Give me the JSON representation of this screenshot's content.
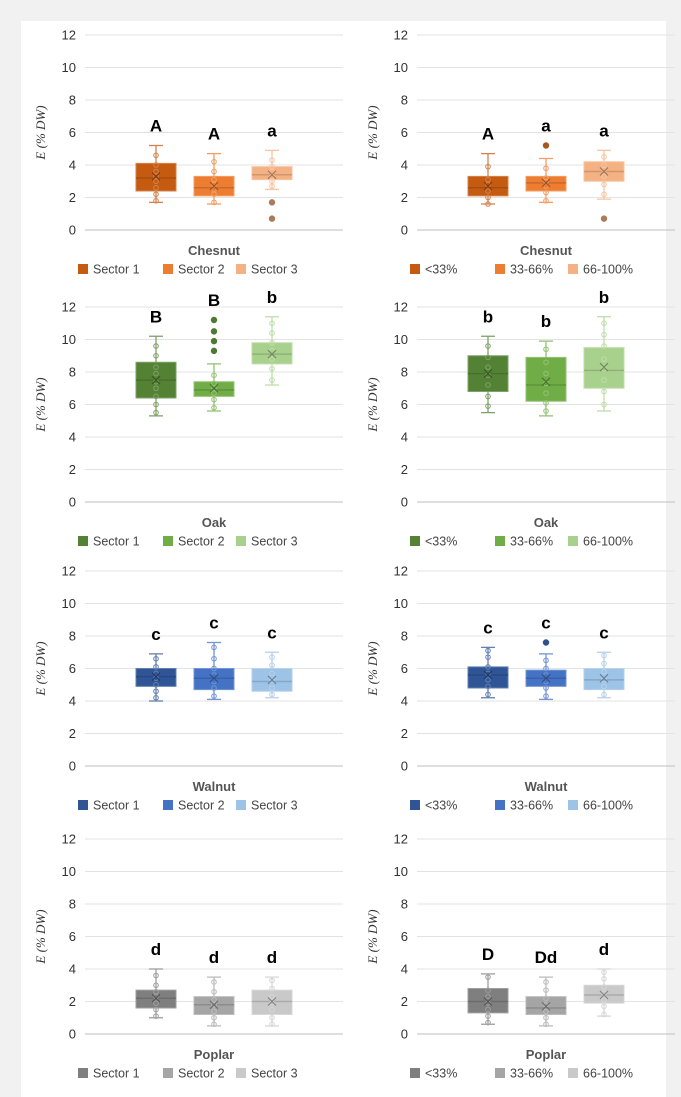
{
  "chart_data": [
    {
      "type": "box",
      "panel": "chestnut-sector",
      "xlabel": "Chesnut",
      "ylabel": "E (% DW)",
      "ylim": [
        0,
        12
      ],
      "yticks": [
        0,
        2,
        4,
        6,
        8,
        10,
        12
      ],
      "grid": true,
      "legend_position": "bottom",
      "series": [
        {
          "name": "Sector 1",
          "color": "#c55a11",
          "q1": 2.4,
          "median": 3.2,
          "q3": 4.1,
          "min": 1.7,
          "max": 5.2,
          "mean": 3.3,
          "letter": "A",
          "outliers": [],
          "points": [
            1.8,
            2.2,
            2.6,
            3.0,
            3.3,
            3.6,
            4.0,
            4.6
          ]
        },
        {
          "name": "Sector 2",
          "color": "#ed7d31",
          "q1": 2.1,
          "median": 2.6,
          "q3": 3.3,
          "min": 1.6,
          "max": 4.7,
          "mean": 2.7,
          "letter": "A",
          "outliers": [],
          "points": [
            1.7,
            2.2,
            2.5,
            2.8,
            3.1,
            3.6,
            4.2
          ]
        },
        {
          "name": "Sector 3",
          "color": "#f4b183",
          "q1": 3.1,
          "median": 3.4,
          "q3": 3.9,
          "min": 2.5,
          "max": 4.9,
          "mean": 3.4,
          "letter": "a",
          "outliers": [
            1.7,
            0.7
          ],
          "points": [
            2.7,
            3.0,
            3.3,
            3.6,
            3.9,
            4.3
          ]
        }
      ]
    },
    {
      "type": "box",
      "panel": "chestnut-cover",
      "xlabel": "Chesnut",
      "ylabel": "E (% DW)",
      "ylim": [
        0,
        12
      ],
      "yticks": [
        0,
        2,
        4,
        6,
        8,
        10,
        12
      ],
      "grid": true,
      "legend_position": "bottom",
      "series": [
        {
          "name": "<33%",
          "color": "#c55a11",
          "q1": 2.1,
          "median": 2.6,
          "q3": 3.3,
          "min": 1.6,
          "max": 4.7,
          "mean": 2.7,
          "letter": "A",
          "outliers": [],
          "points": [
            1.6,
            2.0,
            2.4,
            2.8,
            3.1,
            3.9
          ]
        },
        {
          "name": "33-66%",
          "color": "#ed7d31",
          "q1": 2.4,
          "median": 2.9,
          "q3": 3.3,
          "min": 1.7,
          "max": 4.4,
          "mean": 2.9,
          "letter": "a",
          "outliers": [
            5.2
          ],
          "points": [
            1.8,
            2.3,
            2.7,
            3.0,
            3.2,
            3.8
          ]
        },
        {
          "name": "66-100%",
          "color": "#f4b183",
          "q1": 3.0,
          "median": 3.6,
          "q3": 4.2,
          "min": 1.9,
          "max": 4.9,
          "mean": 3.6,
          "letter": "a",
          "outliers": [
            0.7
          ],
          "points": [
            2.2,
            2.8,
            3.3,
            3.7,
            4.0,
            4.5
          ]
        }
      ]
    },
    {
      "type": "box",
      "panel": "oak-sector",
      "xlabel": "Oak",
      "ylabel": "E (% DW)",
      "ylim": [
        0,
        12
      ],
      "yticks": [
        0,
        2,
        4,
        6,
        8,
        10,
        12
      ],
      "grid": true,
      "legend_position": "bottom",
      "series": [
        {
          "name": "Sector 1",
          "color": "#548235",
          "q1": 6.4,
          "median": 7.5,
          "q3": 8.6,
          "min": 5.3,
          "max": 10.2,
          "mean": 7.5,
          "letter": "B",
          "outliers": [],
          "points": [
            5.5,
            6.0,
            6.5,
            7.0,
            7.4,
            7.9,
            8.3,
            9.0,
            9.6
          ]
        },
        {
          "name": "Sector 2",
          "color": "#70ad47",
          "q1": 6.5,
          "median": 6.9,
          "q3": 7.4,
          "min": 5.6,
          "max": 8.5,
          "mean": 7.0,
          "letter": "B",
          "outliers": [
            9.3,
            9.9,
            10.5,
            11.2
          ],
          "points": [
            5.8,
            6.3,
            6.7,
            7.0,
            7.3,
            7.8
          ]
        },
        {
          "name": "Sector 3",
          "color": "#a9d18e",
          "q1": 8.5,
          "median": 9.1,
          "q3": 9.8,
          "min": 7.2,
          "max": 11.4,
          "mean": 9.1,
          "letter": "b",
          "outliers": [],
          "points": [
            7.5,
            8.2,
            8.8,
            9.3,
            9.8,
            10.4,
            11.0
          ]
        }
      ]
    },
    {
      "type": "box",
      "panel": "oak-cover",
      "xlabel": "Oak",
      "ylabel": "E (% DW)",
      "ylim": [
        0,
        12
      ],
      "yticks": [
        0,
        2,
        4,
        6,
        8,
        10,
        12
      ],
      "grid": true,
      "legend_position": "bottom",
      "series": [
        {
          "name": "<33%",
          "color": "#548235",
          "q1": 6.8,
          "median": 7.9,
          "q3": 9.0,
          "min": 5.5,
          "max": 10.2,
          "mean": 7.9,
          "letter": "b",
          "outliers": [],
          "points": [
            5.9,
            6.5,
            7.2,
            7.8,
            8.3,
            8.9,
            9.6
          ]
        },
        {
          "name": "33-66%",
          "color": "#70ad47",
          "q1": 6.2,
          "median": 7.2,
          "q3": 8.9,
          "min": 5.3,
          "max": 9.9,
          "mean": 7.4,
          "letter": "b",
          "outliers": [],
          "points": [
            5.6,
            6.1,
            6.7,
            7.3,
            7.9,
            8.6,
            9.4
          ]
        },
        {
          "name": "66-100%",
          "color": "#a9d18e",
          "q1": 7.0,
          "median": 8.1,
          "q3": 9.5,
          "min": 5.6,
          "max": 11.4,
          "mean": 8.3,
          "letter": "b",
          "outliers": [],
          "points": [
            6.0,
            6.8,
            7.5,
            8.2,
            8.8,
            9.6,
            10.3,
            11.0
          ]
        }
      ]
    },
    {
      "type": "box",
      "panel": "walnut-sector",
      "xlabel": "Walnut",
      "ylabel": "E (% DW)",
      "ylim": [
        0,
        12
      ],
      "yticks": [
        0,
        2,
        4,
        6,
        8,
        10,
        12
      ],
      "grid": true,
      "legend_position": "bottom",
      "series": [
        {
          "name": "Sector 1",
          "color": "#2f5597",
          "q1": 4.9,
          "median": 5.5,
          "q3": 6.0,
          "min": 4.0,
          "max": 6.9,
          "mean": 5.5,
          "letter": "c",
          "outliers": [],
          "points": [
            4.2,
            4.6,
            5.0,
            5.4,
            5.7,
            6.1,
            6.6
          ]
        },
        {
          "name": "Sector 2",
          "color": "#4472c4",
          "q1": 4.7,
          "median": 5.4,
          "q3": 6.0,
          "min": 4.1,
          "max": 7.6,
          "mean": 5.4,
          "letter": "c",
          "outliers": [],
          "points": [
            4.3,
            4.8,
            5.2,
            5.6,
            6.0,
            6.6,
            7.3
          ]
        },
        {
          "name": "Sector 3",
          "color": "#9dc3e6",
          "q1": 4.6,
          "median": 5.2,
          "q3": 6.0,
          "min": 4.2,
          "max": 7.0,
          "mean": 5.3,
          "letter": "c",
          "outliers": [],
          "points": [
            4.4,
            4.8,
            5.3,
            5.7,
            6.2,
            6.7
          ]
        }
      ]
    },
    {
      "type": "box",
      "panel": "walnut-cover",
      "xlabel": "Walnut",
      "ylabel": "E (% DW)",
      "ylim": [
        0,
        12
      ],
      "yticks": [
        0,
        2,
        4,
        6,
        8,
        10,
        12
      ],
      "grid": true,
      "legend_position": "bottom",
      "series": [
        {
          "name": "<33%",
          "color": "#2f5597",
          "q1": 4.8,
          "median": 5.6,
          "q3": 6.1,
          "min": 4.2,
          "max": 7.3,
          "mean": 5.6,
          "letter": "c",
          "outliers": [],
          "points": [
            4.4,
            4.9,
            5.3,
            5.7,
            6.1,
            6.7,
            7.1
          ]
        },
        {
          "name": "33-66%",
          "color": "#4472c4",
          "q1": 4.9,
          "median": 5.4,
          "q3": 5.9,
          "min": 4.1,
          "max": 6.9,
          "mean": 5.4,
          "letter": "c",
          "outliers": [
            7.6
          ],
          "points": [
            4.3,
            4.8,
            5.2,
            5.6,
            6.0,
            6.5
          ]
        },
        {
          "name": "66-100%",
          "color": "#9dc3e6",
          "q1": 4.7,
          "median": 5.3,
          "q3": 6.0,
          "min": 4.2,
          "max": 7.0,
          "mean": 5.4,
          "letter": "c",
          "outliers": [],
          "points": [
            4.4,
            4.9,
            5.3,
            5.8,
            6.3,
            6.8
          ]
        }
      ]
    },
    {
      "type": "box",
      "panel": "poplar-sector",
      "xlabel": "Poplar",
      "ylabel": "E (% DW)",
      "ylim": [
        0,
        12
      ],
      "yticks": [
        0,
        2,
        4,
        6,
        8,
        10,
        12
      ],
      "grid": true,
      "legend_position": "bottom",
      "series": [
        {
          "name": "Sector 1",
          "color": "#7f7f7f",
          "q1": 1.6,
          "median": 2.2,
          "q3": 2.7,
          "min": 1.0,
          "max": 4.0,
          "mean": 2.2,
          "letter": "d",
          "outliers": [],
          "points": [
            1.1,
            1.5,
            1.9,
            2.3,
            2.6,
            3.0,
            3.6
          ]
        },
        {
          "name": "Sector 2",
          "color": "#a5a5a5",
          "q1": 1.2,
          "median": 1.8,
          "q3": 2.3,
          "min": 0.5,
          "max": 3.5,
          "mean": 1.8,
          "letter": "d",
          "outliers": [],
          "points": [
            0.6,
            1.0,
            1.4,
            1.8,
            2.1,
            2.6,
            3.2
          ]
        },
        {
          "name": "Sector 3",
          "color": "#c9c9c9",
          "q1": 1.2,
          "median": 2.0,
          "q3": 2.7,
          "min": 0.5,
          "max": 3.5,
          "mean": 2.0,
          "letter": "d",
          "outliers": [],
          "points": [
            0.6,
            1.0,
            1.5,
            1.9,
            2.3,
            2.8,
            3.3
          ]
        }
      ]
    },
    {
      "type": "box",
      "panel": "poplar-cover",
      "xlabel": "Poplar",
      "ylabel": "E (% DW)",
      "ylim": [
        0,
        12
      ],
      "yticks": [
        0,
        2,
        4,
        6,
        8,
        10,
        12
      ],
      "grid": true,
      "legend_position": "bottom",
      "series": [
        {
          "name": "<33%",
          "color": "#7f7f7f",
          "q1": 1.3,
          "median": 2.0,
          "q3": 2.8,
          "min": 0.6,
          "max": 3.7,
          "mean": 2.0,
          "letter": "D",
          "outliers": [],
          "points": [
            0.7,
            1.1,
            1.5,
            1.9,
            2.3,
            2.7,
            3.5
          ]
        },
        {
          "name": "33-66%",
          "color": "#a5a5a5",
          "q1": 1.2,
          "median": 1.6,
          "q3": 2.3,
          "min": 0.5,
          "max": 3.5,
          "mean": 1.7,
          "letter": "Dd",
          "outliers": [],
          "points": [
            0.6,
            1.0,
            1.4,
            1.8,
            2.2,
            2.7,
            3.2
          ]
        },
        {
          "name": "66-100%",
          "color": "#c9c9c9",
          "q1": 1.9,
          "median": 2.4,
          "q3": 3.0,
          "min": 1.1,
          "max": 4.0,
          "mean": 2.4,
          "letter": "d",
          "outliers": [],
          "points": [
            1.2,
            1.7,
            2.1,
            2.5,
            2.9,
            3.4,
            3.8
          ]
        }
      ]
    }
  ]
}
